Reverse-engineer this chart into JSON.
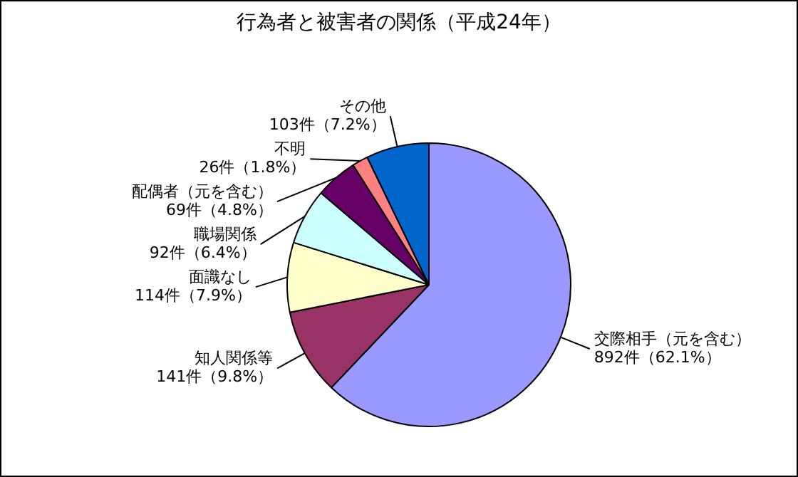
{
  "chart_data": {
    "type": "pie",
    "title": "行為者と被害者の関係（平成24年）",
    "categories": [
      "交際相手（元を含む）",
      "知人関係等",
      "面識なし",
      "職場関係",
      "配偶者（元を含む）",
      "不明",
      "その他"
    ],
    "values": [
      892,
      141,
      114,
      92,
      69,
      26,
      103
    ],
    "colors": [
      "#9999ff",
      "#993366",
      "#ffffcc",
      "#ccffff",
      "#660066",
      "#ff8080",
      "#0066cc"
    ],
    "value_labels": [
      "892件（62.1%）",
      "141件（9.8%）",
      "114件（7.9%）",
      "92件（6.4%）",
      "69件（4.8%）",
      "26件（1.8%）",
      "103件（7.2%）"
    ]
  }
}
